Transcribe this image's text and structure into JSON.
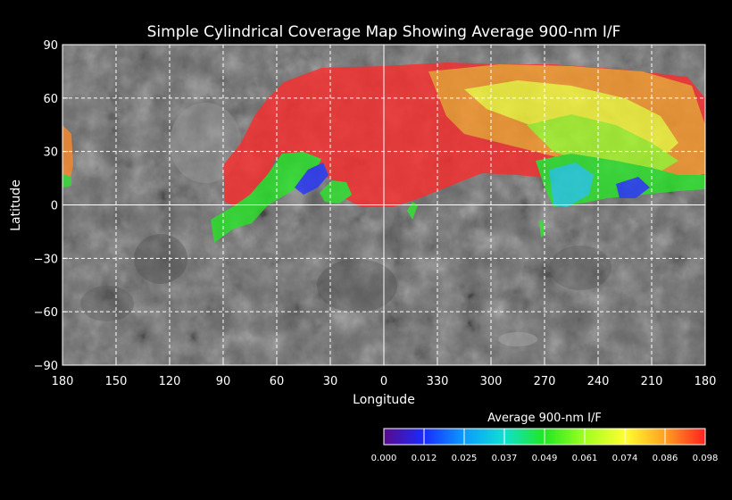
{
  "title": "Simple Cylindrical Coverage Map Showing Average 900-nm I/F",
  "x_axis": {
    "label": "Longitude",
    "ticks": [
      "180",
      "150",
      "120",
      "90",
      "60",
      "30",
      "0",
      "330",
      "300",
      "270",
      "240",
      "210",
      "180"
    ]
  },
  "y_axis": {
    "label": "Latitude",
    "ticks": [
      "90",
      "60",
      "30",
      "0",
      "−30",
      "−60",
      "−90"
    ],
    "range": [
      -90,
      90
    ]
  },
  "colorbar": {
    "title": "Average 900-nm I/F",
    "labels": [
      "0.000",
      "0.012",
      "0.025",
      "0.037",
      "0.049",
      "0.061",
      "0.074",
      "0.086",
      "0.098"
    ],
    "colors": [
      "#5a0a8a",
      "#1a2aff",
      "#0a9cff",
      "#10e0d0",
      "#20e820",
      "#a0ff20",
      "#ffff30",
      "#ffa020",
      "#ff2020"
    ]
  },
  "colors": {
    "background": "#000000",
    "grid": "#ffffff",
    "basemap": "#6a6a6a"
  }
}
